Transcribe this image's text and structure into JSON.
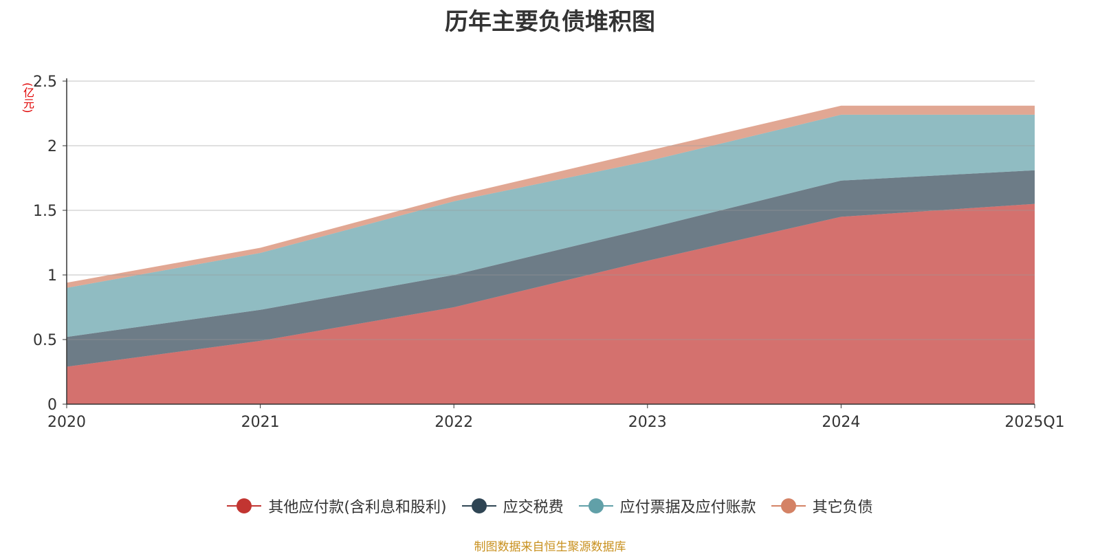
{
  "chart_data": {
    "type": "area",
    "stacked": true,
    "title": "历年主要负债堆积图",
    "unit_label": "(亿元)",
    "categories": [
      "2020",
      "2021",
      "2022",
      "2023",
      "2024",
      "2025Q1"
    ],
    "y_ticks": [
      "0",
      "0.5",
      "1",
      "1.5",
      "2",
      "2.5"
    ],
    "ylim": [
      0,
      2.5
    ],
    "grid": true,
    "legend_position": "bottom",
    "series": [
      {
        "name": "其他应付款(含利息和股利)",
        "color": "#c23531",
        "values": [
          0.29,
          0.49,
          0.75,
          1.11,
          1.45,
          1.55
        ]
      },
      {
        "name": "应交税费",
        "color": "#2f4554",
        "values": [
          0.23,
          0.24,
          0.25,
          0.25,
          0.28,
          0.26
        ]
      },
      {
        "name": "应付票据及应付账款",
        "color": "#61a0a8",
        "values": [
          0.38,
          0.44,
          0.57,
          0.52,
          0.51,
          0.43
        ]
      },
      {
        "name": "其它负债",
        "color": "#d48265",
        "values": [
          0.04,
          0.04,
          0.04,
          0.08,
          0.07,
          0.07
        ]
      }
    ],
    "source": "制图数据来自恒生聚源数据库"
  }
}
